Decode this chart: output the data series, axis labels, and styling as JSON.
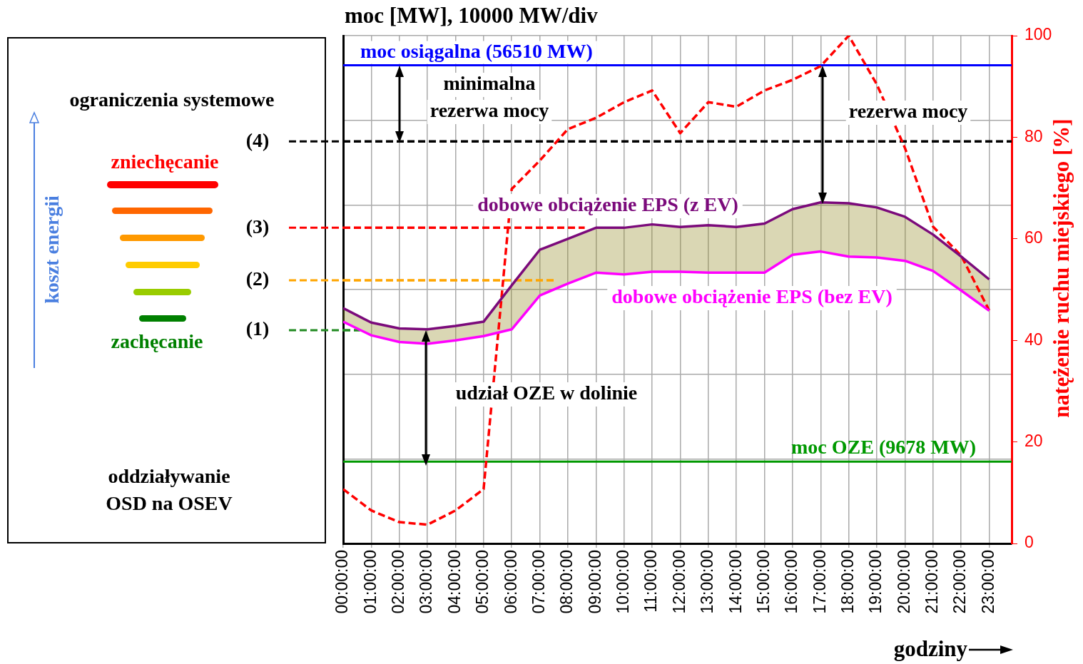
{
  "chart_data": {
    "type": "line",
    "ylabel": "moc [MW], 10000 MW/div",
    "xlabel": "godziny",
    "y2label": "natężenie ruchu miejskiego [%]",
    "x": [
      0,
      1,
      2,
      3,
      4,
      5,
      6,
      7,
      8,
      9,
      10,
      11,
      12,
      13,
      14,
      15,
      16,
      17,
      18,
      19,
      20,
      21,
      22,
      23
    ],
    "xlim": [
      0,
      23.8
    ],
    "xticks": [
      {
        "value": 0,
        "label": "00:00:00"
      },
      {
        "value": 1,
        "label": "01:00:00"
      },
      {
        "value": 2,
        "label": "02:00:00"
      },
      {
        "value": 3,
        "label": "03:00:00"
      },
      {
        "value": 4,
        "label": "04:00:00"
      },
      {
        "value": 5,
        "label": "05:00:00"
      },
      {
        "value": 6,
        "label": "06:00:00"
      },
      {
        "value": 7,
        "label": "07:00:00"
      },
      {
        "value": 8,
        "label": "08:00:00"
      },
      {
        "value": 9,
        "label": "09:00:00"
      },
      {
        "value": 10,
        "label": "10:00:00"
      },
      {
        "value": 11,
        "label": "11:00:00"
      },
      {
        "value": 12,
        "label": "12:00:00"
      },
      {
        "value": 13,
        "label": "13:00:00"
      },
      {
        "value": 14,
        "label": "14:00:00"
      },
      {
        "value": 15,
        "label": "15:00:00"
      },
      {
        "value": 16,
        "label": "16:00:00"
      },
      {
        "value": 17,
        "label": "17:00:00"
      },
      {
        "value": 18,
        "label": "18:00:00"
      },
      {
        "value": 19,
        "label": "19:00:00"
      },
      {
        "value": 20,
        "label": "20:00:00"
      },
      {
        "value": 21,
        "label": "21:00:00"
      },
      {
        "value": 22,
        "label": "22:00:00"
      },
      {
        "value": 23,
        "label": "23:00:00"
      }
    ],
    "ylim": [
      0,
      60000
    ],
    "yticks": [
      {
        "value": 0,
        "label": null
      },
      {
        "value": 10000,
        "label": null
      },
      {
        "value": 20000,
        "label": null
      },
      {
        "value": 30000,
        "label": null
      },
      {
        "value": 40000,
        "label": null
      },
      {
        "value": 50000,
        "label": null
      },
      {
        "value": 60000,
        "label": null
      }
    ],
    "y2lim": [
      0,
      100
    ],
    "y2ticks": [
      0,
      20,
      40,
      60,
      80,
      100
    ],
    "grid": true,
    "legend": "left",
    "marker": "none",
    "series": [
      {
        "name": "dobowe obciążenie EPS (z EV)",
        "color": "#7b0a7b",
        "values": [
          27800,
          26100,
          25400,
          25300,
          25700,
          26200,
          30500,
          34700,
          36000,
          37300,
          37300,
          37700,
          37400,
          37600,
          37400,
          37800,
          39500,
          40300,
          40200,
          39700,
          38600,
          36500,
          33900,
          31200
        ],
        "lower": [
          26200,
          24600,
          23800,
          23600,
          24000,
          24500,
          25300,
          29300,
          30700,
          32000,
          31800,
          32100,
          32100,
          32000,
          32000,
          32000,
          34100,
          34500,
          33900,
          33800,
          33400,
          32200,
          29900,
          27500
        ],
        "upper": [
          27800,
          26100,
          25400,
          25300,
          25700,
          26200,
          30500,
          34700,
          36000,
          37300,
          37300,
          37700,
          37400,
          37600,
          37400,
          37800,
          39500,
          40300,
          40200,
          39700,
          38600,
          36500,
          33900,
          31200
        ]
      },
      {
        "name": "dobowe obciążenie EPS (bez EV)",
        "color": "#ff00ff",
        "values": [
          26200,
          24600,
          23800,
          23600,
          24000,
          24500,
          25300,
          29300,
          30700,
          32000,
          31800,
          32100,
          32100,
          32000,
          32000,
          32000,
          34100,
          34500,
          33900,
          33800,
          33400,
          32200,
          29900,
          27500
        ]
      },
      {
        "color": "#ff0000",
        "axis": "y2",
        "line_style": "dashed",
        "values": [
          10.7,
          6.5,
          4.2,
          3.7,
          6.5,
          10.7,
          69.8,
          75.4,
          81.6,
          83.8,
          86.9,
          89.2,
          80.8,
          86.9,
          86.0,
          89.2,
          91.3,
          94.0,
          100,
          90.4,
          77.9,
          62.4,
          56.7,
          45.9
        ]
      },
      {
        "name": "(4)",
        "color": "#000000",
        "line_style": "dashed",
        "x": [
          0,
          23.8
        ],
        "values": [
          47500,
          47500
        ]
      },
      {
        "name": "(3)",
        "color": "#ff0000",
        "line_style": "dashed",
        "x": [
          0,
          8.6
        ],
        "values": [
          37300,
          37300
        ]
      },
      {
        "name": "(2)",
        "color": "#ffa500",
        "line_style": "dashed",
        "x": [
          0,
          7.6
        ],
        "values": [
          31100,
          31100
        ]
      },
      {
        "name": "(1)",
        "color": "#228b22",
        "line_style": "dashed",
        "x": [
          0,
          0.6
        ],
        "values": [
          25200,
          25200
        ]
      }
    ],
    "ref_lines": [
      {
        "axis": "y",
        "value": 56510,
        "label": "moc osiągalna (56510 MW)",
        "color": "#0000ff"
      },
      {
        "axis": "y",
        "value": 9678,
        "label": "moc OZE (9678 MW)",
        "color": "#009900"
      }
    ],
    "annotations": [
      "ograniczenia systemowe",
      "koszt energii",
      "zniechęcanie",
      "zachęcanie",
      "oddziaływanie\nOSD na OSEV",
      "minimalna\nrezerwa mocy",
      "rezerwa mocy",
      "udział OZE w dolinie"
    ]
  }
}
